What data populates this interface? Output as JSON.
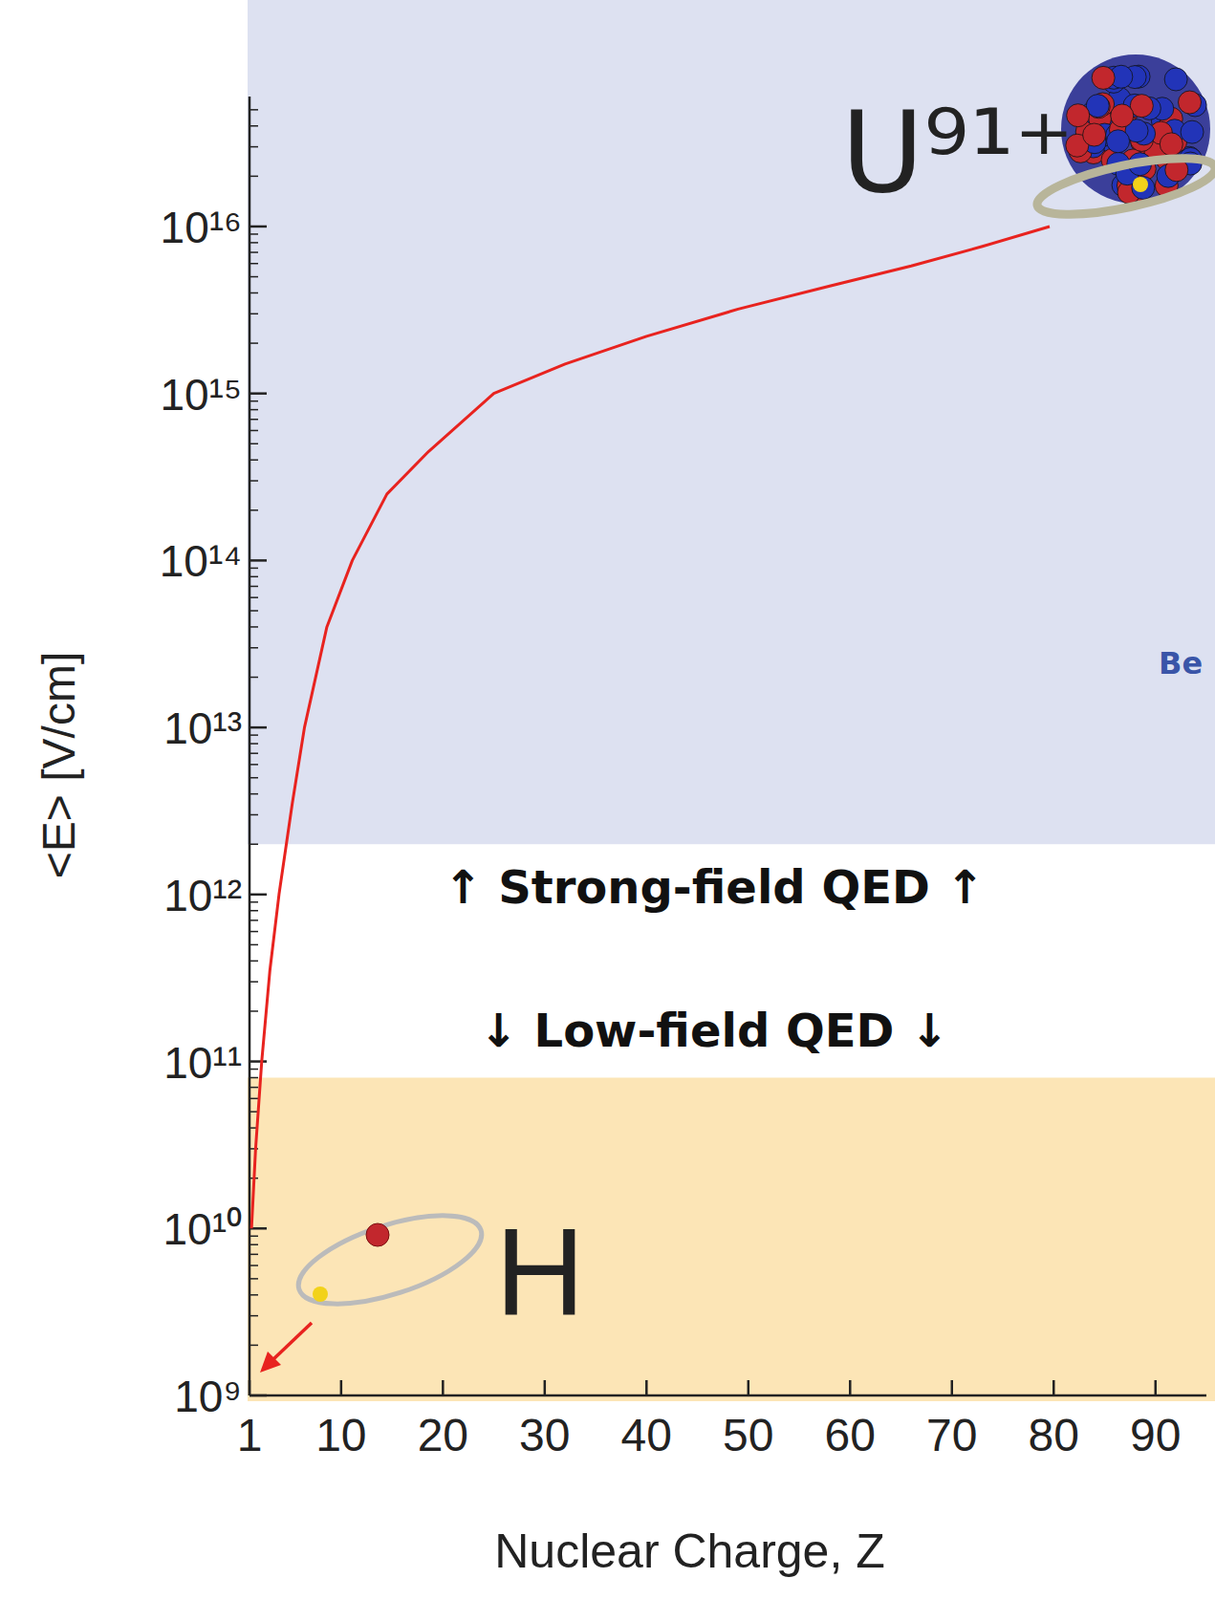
{
  "chart_data": {
    "type": "line",
    "x_label": "Nuclear Charge, Z",
    "y_label": "<E> [V/cm]",
    "log": "y",
    "color": "#e8231f",
    "xlim": [
      1,
      95
    ],
    "xticks": [
      1,
      10,
      20,
      30,
      40,
      50,
      60,
      70,
      80,
      90
    ],
    "ylim": [
      1000000000.0,
      6e+16
    ],
    "yticks": [
      {
        "value": 1000000000.0,
        "label": "10⁹"
      },
      {
        "value": 10000000000.0,
        "label": "10¹⁰"
      },
      {
        "value": 100000000000.0,
        "label": "10¹¹"
      },
      {
        "value": 1000000000000.0,
        "label": "10¹²"
      },
      {
        "value": 10000000000000.0,
        "label": "10¹³"
      },
      {
        "value": 100000000000000.0,
        "label": "10¹⁴"
      },
      {
        "value": 1000000000000000.0,
        "label": "10¹⁵"
      },
      {
        "value": 1e+16,
        "label": "10¹⁶"
      }
    ],
    "x": [
      1.2,
      1.6,
      2.2,
      3,
      3.9,
      5.2,
      6.4,
      8.6,
      11.1,
      14.5,
      18.6,
      25,
      32,
      40,
      49,
      58,
      66,
      73,
      79.6
    ],
    "values": [
      10000000000.0,
      30000000000.0,
      100000000000.0,
      350000000000.0,
      1000000000000.0,
      3500000000000.0,
      10000000000000.0,
      40000000000000.0,
      100000000000000.0,
      250000000000000.0,
      450000000000000.0,
      1000000000000000.0,
      1500000000000000.0,
      2200000000000000.0,
      3200000000000000.0,
      4400000000000000.0,
      5800000000000000.0,
      7600000000000000.0,
      1e+16
    ],
    "regions": [
      {
        "label": "↑ Strong-field QED ↑",
        "above": 2000000000000.0,
        "color": "#dde1f1"
      },
      {
        "label": "↓ Low-field QED ↓",
        "below": 80000000000.0,
        "color": "#fce5b6"
      }
    ],
    "annotations": {
      "uranium": "U⁹¹⁺",
      "hydrogen": "H",
      "partial": "Be"
    }
  }
}
